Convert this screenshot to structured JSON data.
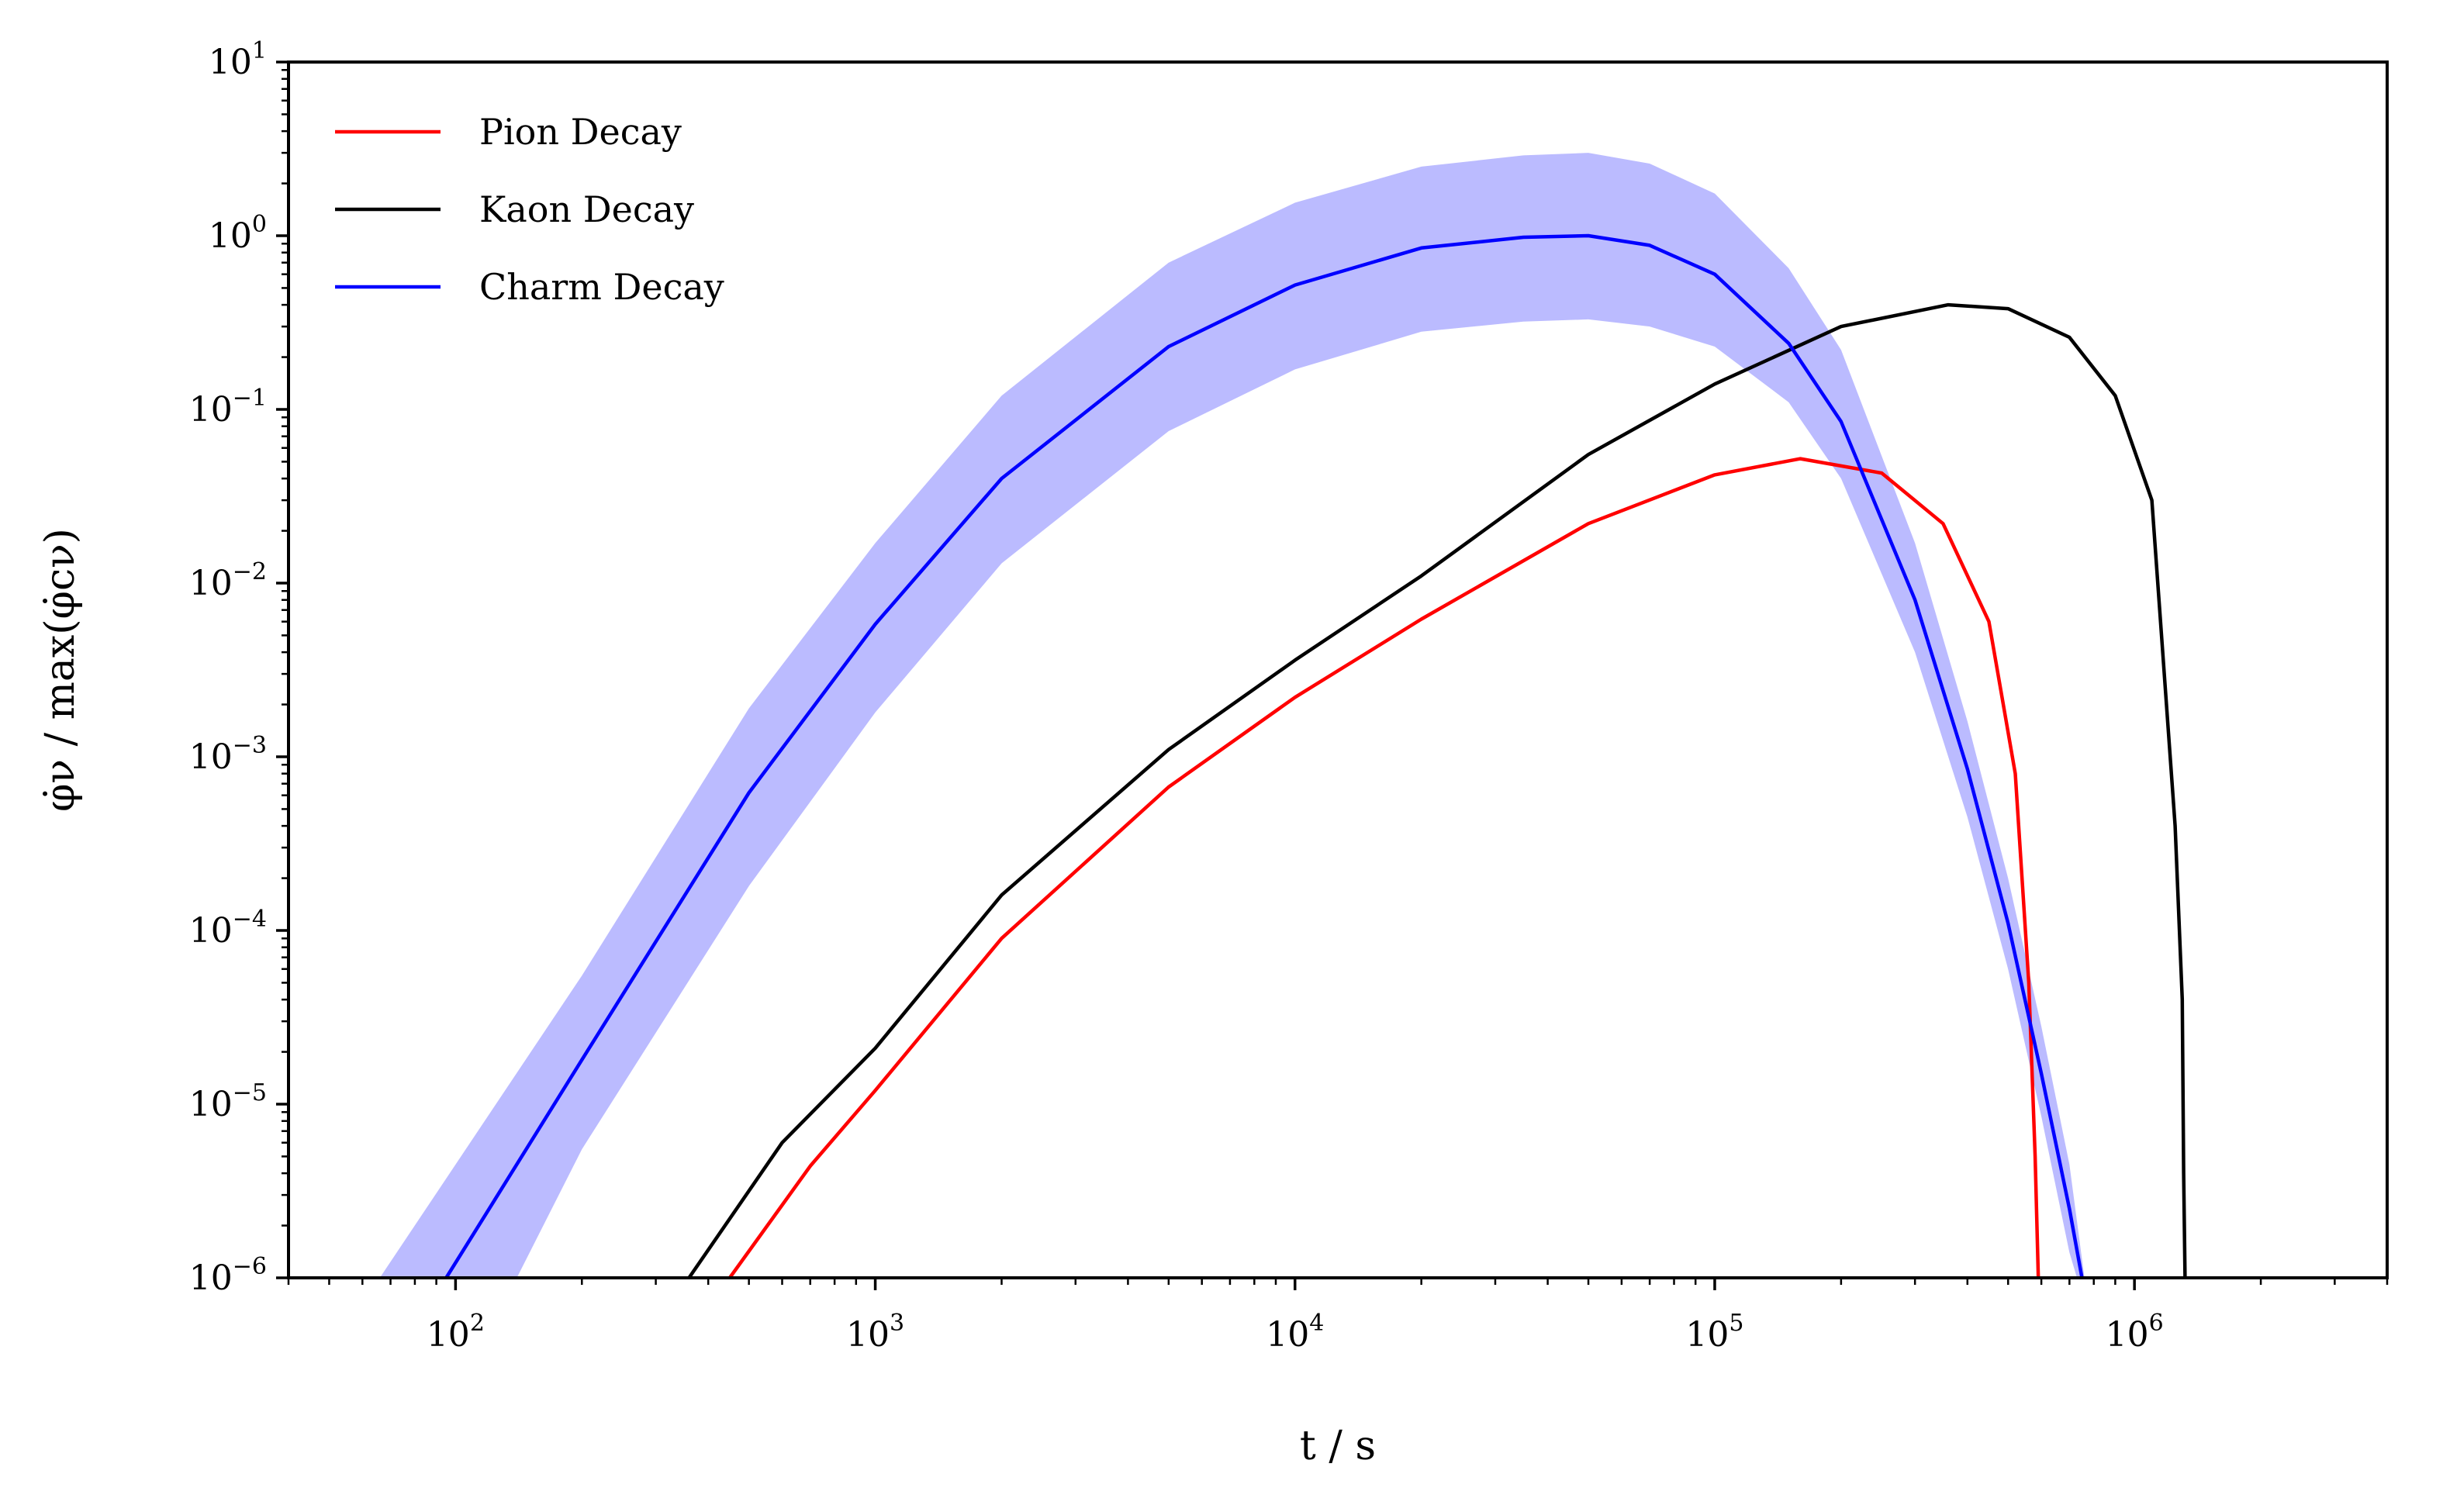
{
  "chart_data": {
    "type": "line",
    "xlabel": "t / s",
    "ylabel": "φ̇ν / max(φ̇cν)",
    "x_scale": "log",
    "y_scale": "log",
    "xlim": [
      40,
      4000000
    ],
    "ylim": [
      1e-06,
      10
    ],
    "grid": false,
    "legend_position": "top-left",
    "x_ticks": [
      {
        "value": 100,
        "base": "10",
        "exp": "2"
      },
      {
        "value": 1000,
        "base": "10",
        "exp": "3"
      },
      {
        "value": 10000,
        "base": "10",
        "exp": "4"
      },
      {
        "value": 100000,
        "base": "10",
        "exp": "5"
      },
      {
        "value": 1000000,
        "base": "10",
        "exp": "6"
      }
    ],
    "y_ticks": [
      {
        "value": 10,
        "base": "10",
        "exp": "1"
      },
      {
        "value": 1,
        "base": "10",
        "exp": "0"
      },
      {
        "value": 0.1,
        "base": "10",
        "exp": "−1"
      },
      {
        "value": 0.01,
        "base": "10",
        "exp": "−2"
      },
      {
        "value": 0.001,
        "base": "10",
        "exp": "−3"
      },
      {
        "value": 0.0001,
        "base": "10",
        "exp": "−4"
      },
      {
        "value": 1e-05,
        "base": "10",
        "exp": "−5"
      },
      {
        "value": 1e-06,
        "base": "10",
        "exp": "−6"
      }
    ],
    "series": [
      {
        "name": "Pion Decay",
        "color": "#ff0000",
        "x": [
          450,
          700,
          1000,
          2000,
          5000,
          10000,
          20000,
          50000,
          100000,
          160000,
          250000,
          350000,
          450000,
          520000,
          560000,
          580000,
          590000
        ],
        "y": [
          1e-06,
          4.4e-06,
          1.2e-05,
          9e-05,
          0.00067,
          0.0022,
          0.0062,
          0.022,
          0.042,
          0.052,
          0.043,
          0.022,
          0.006,
          0.0008,
          5e-05,
          5e-06,
          1e-06
        ]
      },
      {
        "name": "Kaon Decay",
        "color": "#000000",
        "x": [
          360,
          600,
          1000,
          2000,
          5000,
          10000,
          20000,
          50000,
          100000,
          200000,
          360000,
          500000,
          700000,
          900000,
          1100000,
          1250000,
          1300000,
          1310000,
          1320000
        ],
        "y": [
          1e-06,
          6e-06,
          2.1e-05,
          0.00016,
          0.0011,
          0.0036,
          0.011,
          0.055,
          0.14,
          0.3,
          0.4,
          0.38,
          0.26,
          0.12,
          0.03,
          0.0004,
          4e-05,
          4e-06,
          1e-06
        ]
      },
      {
        "name": "Charm Decay",
        "color": "#0000ff",
        "x": [
          95,
          200,
          500,
          1000,
          2000,
          5000,
          10000,
          20000,
          35000,
          50000,
          70000,
          100000,
          150000,
          200000,
          300000,
          400000,
          500000,
          600000,
          700000,
          750000
        ],
        "y": [
          1e-06,
          1.8e-05,
          0.00062,
          0.0058,
          0.04,
          0.23,
          0.52,
          0.85,
          0.98,
          1.0,
          0.88,
          0.6,
          0.24,
          0.085,
          0.008,
          0.00085,
          0.00011,
          1.5e-05,
          2.5e-06,
          1e-06
        ],
        "band": {
          "color": "#bbbbff",
          "lower": [
            1e-06,
            5.5e-06,
            0.00018,
            0.0018,
            0.013,
            0.075,
            0.17,
            0.28,
            0.32,
            0.33,
            0.3,
            0.23,
            0.11,
            0.04,
            0.004,
            0.00045,
            6e-05,
            8.5e-06,
            1.4e-06,
            8e-07
          ],
          "lower_x": [
            140,
            200,
            500,
            1000,
            2000,
            5000,
            10000,
            20000,
            35000,
            50000,
            70000,
            100000,
            150000,
            200000,
            300000,
            400000,
            500000,
            600000,
            700000,
            750000
          ],
          "upper_x": [
            66,
            200,
            500,
            1000,
            2000,
            5000,
            10000,
            20000,
            35000,
            50000,
            70000,
            100000,
            150000,
            200000,
            300000,
            400000,
            500000,
            600000,
            700000,
            760000
          ],
          "upper": [
            1e-06,
            5.5e-05,
            0.0019,
            0.017,
            0.12,
            0.7,
            1.55,
            2.5,
            2.9,
            3.0,
            2.6,
            1.75,
            0.65,
            0.22,
            0.017,
            0.0016,
            0.0002,
            2.8e-05,
            4.5e-06,
            1e-06
          ]
        }
      }
    ]
  }
}
